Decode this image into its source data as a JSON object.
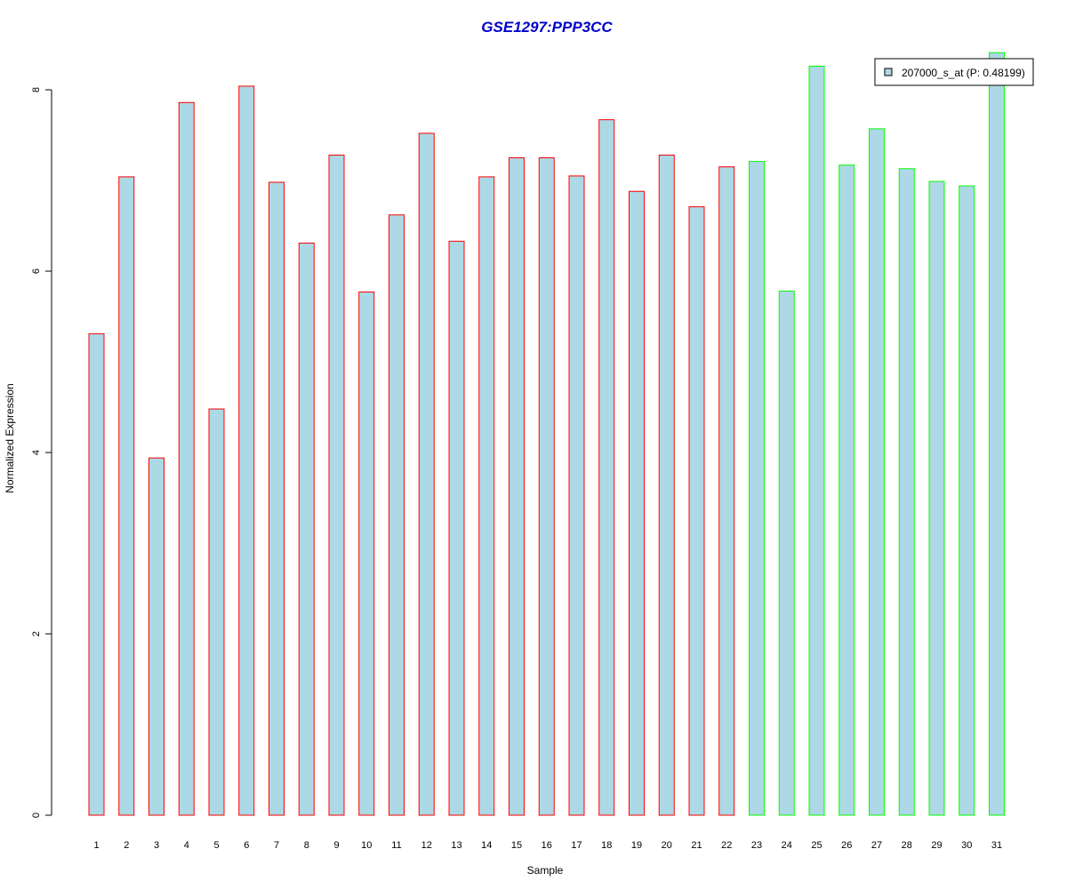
{
  "chart_data": {
    "type": "bar",
    "title": "GSE1297:PPP3CC",
    "xlabel": "Sample",
    "ylabel": "Normalized Expression",
    "ylim": [
      0,
      8.4
    ],
    "yticks": [
      "0",
      "2",
      "4",
      "6",
      "8"
    ],
    "categories": [
      "1",
      "2",
      "3",
      "4",
      "5",
      "6",
      "7",
      "8",
      "9",
      "10",
      "11",
      "12",
      "13",
      "14",
      "15",
      "16",
      "17",
      "18",
      "19",
      "20",
      "21",
      "22",
      "23",
      "24",
      "25",
      "26",
      "27",
      "28",
      "29",
      "30",
      "31"
    ],
    "series": [
      {
        "name": "207000_s_at (P: 0.48199)",
        "values": [
          5.31,
          7.04,
          3.94,
          7.86,
          4.48,
          8.04,
          6.98,
          6.31,
          7.28,
          5.77,
          6.62,
          7.52,
          6.33,
          7.04,
          7.25,
          7.25,
          7.05,
          7.67,
          6.88,
          7.28,
          6.71,
          7.15,
          7.21,
          5.78,
          8.26,
          7.17,
          7.57,
          7.13,
          6.99,
          6.94,
          8.41
        ]
      }
    ],
    "groups": [
      {
        "from": 1,
        "to": 22,
        "border_color": "#ff0000"
      },
      {
        "from": 23,
        "to": 31,
        "border_color": "#00ff00"
      }
    ],
    "bar_fill": "#add8e6",
    "title_color": "#0000cc",
    "legend_position": "top-right",
    "grid": false
  }
}
